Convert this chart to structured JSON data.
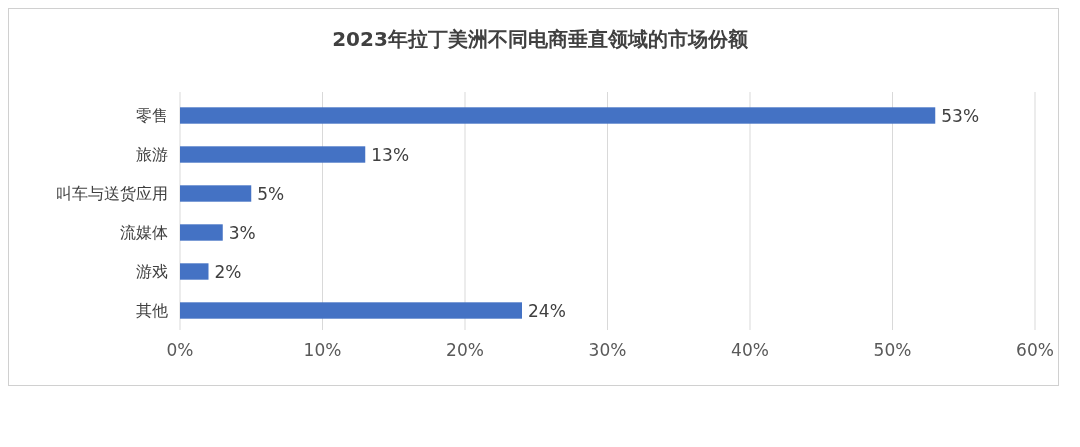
{
  "chart_data": {
    "type": "bar",
    "orientation": "horizontal",
    "title": "2023年拉丁美洲不同电商垂直领域的市场份额",
    "categories": [
      "零售",
      "旅游",
      "叫车与送货应用",
      "流媒体",
      "游戏",
      "其他"
    ],
    "values": [
      53,
      13,
      5,
      3,
      2,
      24
    ],
    "value_labels": [
      "53%",
      "13%",
      "5%",
      "3%",
      "2%",
      "24%"
    ],
    "color": "#4472c4",
    "xlim": [
      0,
      60
    ],
    "xticks": [
      {
        "value": 0,
        "label": "0%"
      },
      {
        "value": 10,
        "label": "10%"
      },
      {
        "value": 20,
        "label": "20%"
      },
      {
        "value": 30,
        "label": "30%"
      },
      {
        "value": 40,
        "label": "40%"
      },
      {
        "value": 50,
        "label": "50%"
      },
      {
        "value": 60,
        "label": "60%"
      }
    ],
    "grid": "x"
  }
}
